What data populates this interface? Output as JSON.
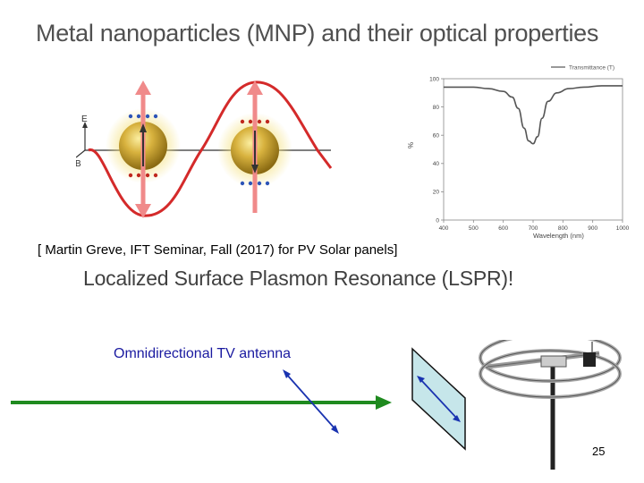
{
  "slide": {
    "title": "Metal nanoparticles (MNP) and their optical properties",
    "citation": "[ Martin Greve,  IFT Seminar, Fall (2017)  for PV Solar panels]",
    "subtitle": "Localized Surface Plasmon Resonance (LSPR)!",
    "antenna_label": "Omnidirectional TV antenna",
    "page_number": "25"
  },
  "diagram": {
    "e_label": "E",
    "b_label": "B"
  },
  "colors": {
    "wave": "#d42a2a",
    "arrow_pink": "#f08a8a",
    "dot_blue": "#2c54b8",
    "dot_red": "#c0281e",
    "green_ray": "#1f8a1f",
    "dipole_blue": "#1a33b0",
    "panel_fill": "#c6e6ea"
  },
  "chart_data": {
    "type": "line",
    "title": "",
    "legend": [
      "Transmittance (T)"
    ],
    "legend_position": "top-right",
    "xlabel": "Wavelength (nm)",
    "ylabel": "%",
    "xlim": [
      400,
      1000
    ],
    "ylim": [
      0,
      100
    ],
    "xticks": [
      400,
      500,
      600,
      700,
      800,
      900,
      1000
    ],
    "yticks": [
      0,
      20,
      40,
      60,
      80,
      100
    ],
    "series": [
      {
        "name": "Transmittance (T)",
        "x": [
          400,
          450,
          500,
          550,
          600,
          630,
          650,
          670,
          685,
          700,
          715,
          730,
          750,
          780,
          820,
          870,
          930,
          1000
        ],
        "y": [
          94,
          94,
          94,
          93,
          91,
          87,
          79,
          65,
          56,
          54,
          59,
          72,
          84,
          90,
          93,
          94,
          95,
          95
        ]
      }
    ]
  }
}
